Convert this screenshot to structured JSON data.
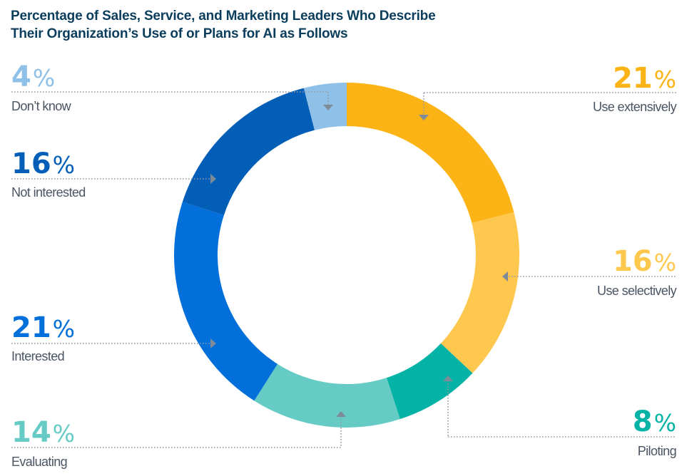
{
  "title": {
    "line1": "Percentage of Sales, Service, and Marketing Leaders Who Describe",
    "line2": "Their Organization’s Use of or Plans for AI as Follows"
  },
  "colors": {
    "title": "#0b3d5c",
    "label_text": "#4a5563",
    "leader_line": "#8f99a3",
    "arrow": "#7d8b98"
  },
  "chart_data": {
    "type": "pie",
    "variant": "donut",
    "title": "Percentage of Sales, Service, and Marketing Leaders Who Describe Their Organization’s Use of or Plans for AI as Follows",
    "unit": "%",
    "start": "12 o'clock, clockwise",
    "slices": [
      {
        "label": "Use extensively",
        "value": 21,
        "color": "#fcb316",
        "label_color": "#fcb316",
        "side": "right"
      },
      {
        "label": "Use selectively",
        "value": 16,
        "color": "#fec84e",
        "label_color": "#fec84e",
        "side": "right"
      },
      {
        "label": "Piloting",
        "value": 8,
        "color": "#04b3a6",
        "label_color": "#04b3a6",
        "side": "right"
      },
      {
        "label": "Evaluating",
        "value": 14,
        "color": "#66cbc4",
        "label_color": "#66cbc4",
        "side": "left"
      },
      {
        "label": "Interested",
        "value": 21,
        "color": "#036fdb",
        "label_color": "#036fdb",
        "side": "left"
      },
      {
        "label": "Not interested",
        "value": 16,
        "color": "#035eb8",
        "label_color": "#035eb8",
        "side": "left"
      },
      {
        "label": "Don’t know",
        "value": 4,
        "color": "#8fc0e7",
        "label_color": "#8fc0e7",
        "side": "left"
      }
    ],
    "percent_symbol": "%",
    "legend": "callouts around chart"
  }
}
